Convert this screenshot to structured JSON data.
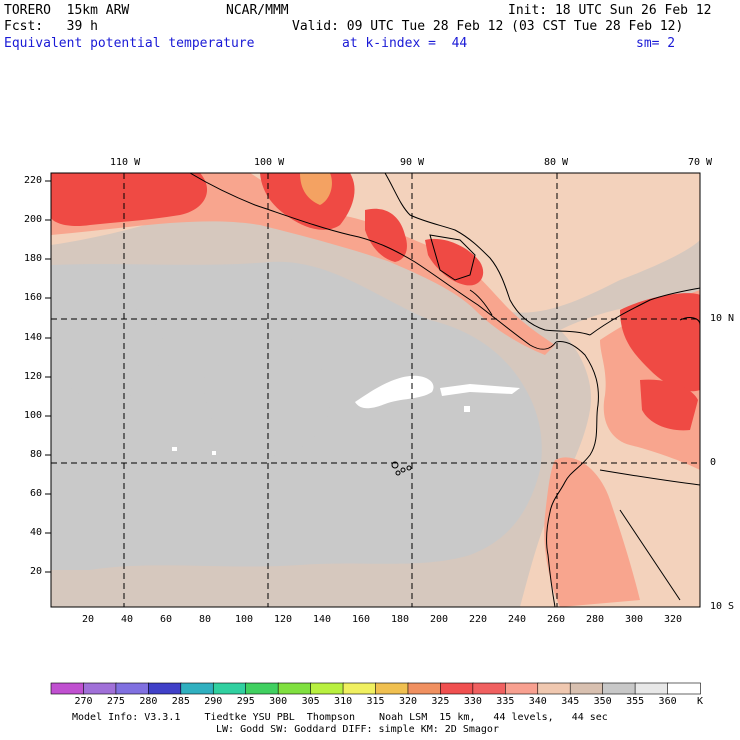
{
  "header": {
    "model": "TORERO  15km ARW",
    "center": "NCAR/MMM",
    "init": "Init: 18 UTC Sun 26 Feb 12",
    "fcst": "Fcst:   39 h",
    "valid": "Valid: 09 UTC Tue 28 Feb 12 (03 CST Tue 28 Feb 12)",
    "field": "Equivalent potential temperature",
    "level": "at k-index =  44",
    "smooth": "sm= 2"
  },
  "map": {
    "lon_labels": [
      "110 W",
      "100 W",
      "90 W",
      "80 W",
      "70 W"
    ],
    "lat_labels": [
      "10 N",
      "0",
      "10 S"
    ],
    "y_ticks": [
      "220",
      "200",
      "180",
      "160",
      "140",
      "120",
      "100",
      "80",
      "60",
      "40",
      "20"
    ],
    "x_ticks": [
      "20",
      "40",
      "60",
      "80",
      "100",
      "120",
      "140",
      "160",
      "180",
      "200",
      "220",
      "240",
      "260",
      "280",
      "300",
      "320"
    ]
  },
  "colorbar": {
    "labels": [
      "270",
      "275",
      "280",
      "285",
      "290",
      "295",
      "300",
      "305",
      "310",
      "315",
      "320",
      "325",
      "330",
      "335",
      "340",
      "345",
      "350",
      "355",
      "360"
    ],
    "unit": "K",
    "colors": [
      "#c050d0",
      "#a070d8",
      "#8070e0",
      "#4040c8",
      "#30b0c0",
      "#30d0a0",
      "#40d060",
      "#80e040",
      "#b8f040",
      "#f0f060",
      "#f0c050",
      "#f09060",
      "#f05050",
      "#f06060",
      "#f8a090",
      "#f0c8b0",
      "#d8c0b0",
      "#c8c8c8",
      "#e8e8e8",
      "#ffffff"
    ],
    "field_colors": {
      "cool_gray": "#c8c8c8",
      "warm_gray": "#d6c8be",
      "peach": "#f3d2bc",
      "salmon": "#f8a58e",
      "coral": "#f36a5c",
      "red": "#ef4a44",
      "orange": "#f4a262"
    }
  },
  "footer": {
    "line1": "Model Info: V3.3.1    Tiedtke YSU PBL  Thompson    Noah LSM  15 km,   44 levels,   44 sec",
    "line2": "LW: Godd SW: Goddard DIFF: simple KM: 2D Smagor"
  }
}
